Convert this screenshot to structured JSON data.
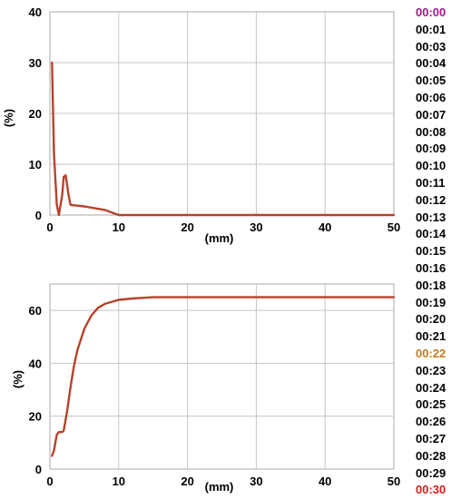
{
  "chart_data": [
    {
      "type": "line",
      "ylabel": "(%)",
      "xlabel": "(mm)",
      "xlim": [
        0,
        50
      ],
      "ylim": [
        0,
        40
      ],
      "xticks": [
        "0",
        "10",
        "20",
        "30",
        "40",
        "50"
      ],
      "yticks": [
        "0",
        "10",
        "20",
        "30",
        "40"
      ],
      "grid": true,
      "series_color": "#b5432b",
      "x": [
        0.3,
        0.6,
        1.0,
        1.3,
        1.8,
        2.0,
        2.3,
        2.7,
        3.0,
        5.0,
        8.0,
        10.0,
        20.0,
        30.0,
        40.0,
        50.0
      ],
      "y": [
        30,
        12,
        2,
        0,
        4,
        7.5,
        7.8,
        4,
        2,
        1.7,
        1,
        0,
        0,
        0,
        0,
        0
      ]
    },
    {
      "type": "line",
      "ylabel": "(%)",
      "xlabel": "(mm)",
      "xlim": [
        0,
        50
      ],
      "ylim": [
        0,
        70
      ],
      "xticks": [
        "0",
        "10",
        "20",
        "30",
        "40",
        "50"
      ],
      "yticks": [
        "0",
        "20",
        "40",
        "60"
      ],
      "grid": true,
      "series_color": "#b5432b",
      "x": [
        0.3,
        0.6,
        1.0,
        1.3,
        1.8,
        2.0,
        2.5,
        3.0,
        3.5,
        4.0,
        5.0,
        6.0,
        7.0,
        8.0,
        10.0,
        12.0,
        15.0,
        20.0,
        30.0,
        40.0,
        50.0
      ],
      "y": [
        5,
        7,
        13,
        14,
        14,
        14.5,
        22,
        31,
        39,
        45,
        53,
        58,
        61,
        62.5,
        64,
        64.5,
        65,
        65,
        65,
        65,
        65
      ]
    }
  ],
  "time_labels": [
    {
      "text": "00:00",
      "color": "#9b1a8e"
    },
    {
      "text": "00:01",
      "color": "#000000"
    },
    {
      "text": "00:03",
      "color": "#000000"
    },
    {
      "text": "00:04",
      "color": "#000000"
    },
    {
      "text": "00:05",
      "color": "#000000"
    },
    {
      "text": "00:06",
      "color": "#000000"
    },
    {
      "text": "00:07",
      "color": "#000000"
    },
    {
      "text": "00:08",
      "color": "#000000"
    },
    {
      "text": "00:09",
      "color": "#000000"
    },
    {
      "text": "00:10",
      "color": "#000000"
    },
    {
      "text": "00:11",
      "color": "#000000"
    },
    {
      "text": "00:12",
      "color": "#000000"
    },
    {
      "text": "00:13",
      "color": "#000000"
    },
    {
      "text": "00:14",
      "color": "#000000"
    },
    {
      "text": "00:15",
      "color": "#000000"
    },
    {
      "text": "00:16",
      "color": "#000000"
    },
    {
      "text": "00:18",
      "color": "#000000"
    },
    {
      "text": "00:19",
      "color": "#000000"
    },
    {
      "text": "00:20",
      "color": "#000000"
    },
    {
      "text": "00:21",
      "color": "#000000"
    },
    {
      "text": "00:22",
      "color": "#c47a1e"
    },
    {
      "text": "00:23",
      "color": "#000000"
    },
    {
      "text": "00:24",
      "color": "#000000"
    },
    {
      "text": "00:25",
      "color": "#000000"
    },
    {
      "text": "00:26",
      "color": "#000000"
    },
    {
      "text": "00:27",
      "color": "#000000"
    },
    {
      "text": "00:28",
      "color": "#000000"
    },
    {
      "text": "00:29",
      "color": "#000000"
    },
    {
      "text": "00:30",
      "color": "#d42020"
    }
  ]
}
